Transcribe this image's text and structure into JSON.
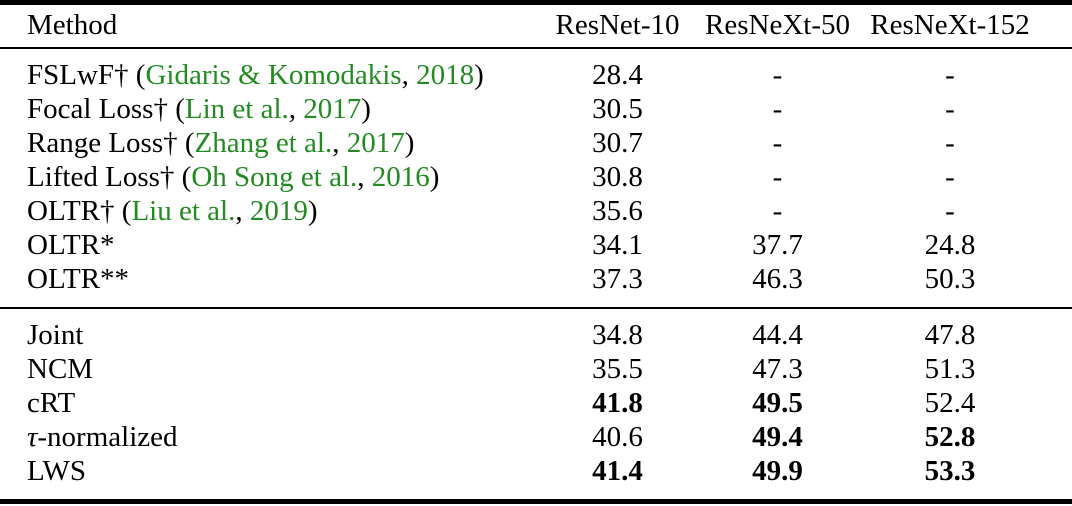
{
  "table": {
    "citation_color": "#228B22",
    "columns": [
      "Method",
      "ResNet-10",
      "ResNeXt-50",
      "ResNeXt-152"
    ],
    "sections": [
      {
        "name": "prior-methods",
        "rows": [
          {
            "method": [
              {
                "text": "FSLwF† ("
              },
              {
                "text": "Gidaris & Komodakis",
                "cite": true
              },
              {
                "text": ", "
              },
              {
                "text": "2018",
                "cite": true
              },
              {
                "text": ")"
              }
            ],
            "values": [
              {
                "text": "28.4"
              },
              {
                "text": "-"
              },
              {
                "text": "-"
              }
            ]
          },
          {
            "method": [
              {
                "text": "Focal Loss† ("
              },
              {
                "text": "Lin et al.",
                "cite": true
              },
              {
                "text": ", "
              },
              {
                "text": "2017",
                "cite": true
              },
              {
                "text": ")"
              }
            ],
            "values": [
              {
                "text": "30.5"
              },
              {
                "text": "-"
              },
              {
                "text": "-"
              }
            ]
          },
          {
            "method": [
              {
                "text": "Range Loss† ("
              },
              {
                "text": "Zhang et al.",
                "cite": true
              },
              {
                "text": ", "
              },
              {
                "text": "2017",
                "cite": true
              },
              {
                "text": ")"
              }
            ],
            "values": [
              {
                "text": "30.7"
              },
              {
                "text": "-"
              },
              {
                "text": "-"
              }
            ]
          },
          {
            "method": [
              {
                "text": "Lifted Loss† ("
              },
              {
                "text": "Oh Song et al.",
                "cite": true
              },
              {
                "text": ", "
              },
              {
                "text": "2016",
                "cite": true
              },
              {
                "text": ")"
              }
            ],
            "values": [
              {
                "text": "30.8"
              },
              {
                "text": "-"
              },
              {
                "text": "-"
              }
            ]
          },
          {
            "method": [
              {
                "text": "OLTR† ("
              },
              {
                "text": "Liu et al.",
                "cite": true
              },
              {
                "text": ", "
              },
              {
                "text": "2019",
                "cite": true
              },
              {
                "text": ")"
              }
            ],
            "values": [
              {
                "text": "35.6"
              },
              {
                "text": "-"
              },
              {
                "text": "-"
              }
            ]
          },
          {
            "method": [
              {
                "text": "OLTR*"
              }
            ],
            "values": [
              {
                "text": "34.1"
              },
              {
                "text": "37.7"
              },
              {
                "text": "24.8"
              }
            ]
          },
          {
            "method": [
              {
                "text": "OLTR**"
              }
            ],
            "values": [
              {
                "text": "37.3"
              },
              {
                "text": "46.3"
              },
              {
                "text": "50.3"
              }
            ]
          }
        ]
      },
      {
        "name": "our-methods",
        "rows": [
          {
            "method": [
              {
                "text": "Joint"
              }
            ],
            "values": [
              {
                "text": "34.8"
              },
              {
                "text": "44.4"
              },
              {
                "text": "47.8"
              }
            ]
          },
          {
            "method": [
              {
                "text": "NCM"
              }
            ],
            "values": [
              {
                "text": "35.5"
              },
              {
                "text": "47.3"
              },
              {
                "text": "51.3"
              }
            ]
          },
          {
            "method": [
              {
                "text": "cRT"
              }
            ],
            "values": [
              {
                "text": "41.8",
                "bold": true
              },
              {
                "text": "49.5",
                "bold": true
              },
              {
                "text": "52.4"
              }
            ]
          },
          {
            "method": [
              {
                "text": "τ",
                "italic": true
              },
              {
                "text": "-normalized"
              }
            ],
            "values": [
              {
                "text": "40.6"
              },
              {
                "text": "49.4",
                "bold": true
              },
              {
                "text": "52.8",
                "bold": true
              }
            ]
          },
          {
            "method": [
              {
                "text": "LWS"
              }
            ],
            "values": [
              {
                "text": "41.4",
                "bold": true
              },
              {
                "text": "49.9",
                "bold": true
              },
              {
                "text": "53.3",
                "bold": true
              }
            ]
          }
        ]
      }
    ]
  }
}
